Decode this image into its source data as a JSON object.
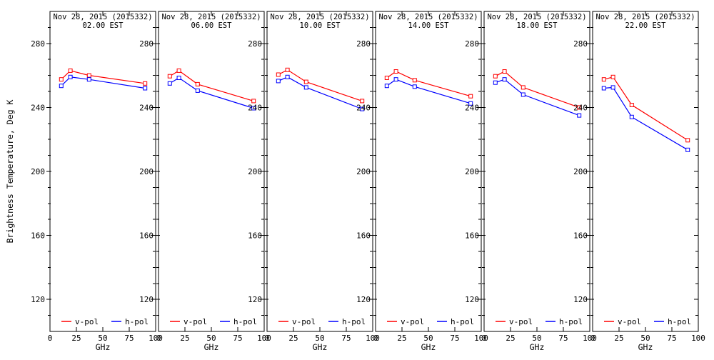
{
  "figure": {
    "background": "#ffffff",
    "frame_color": "#000000"
  },
  "chart_data": {
    "type": "line",
    "title_date": "Nov 28, 2015 (2015332)",
    "xlabel": "GHz",
    "ylabel": "Brightness Temperature, Deg K",
    "x": [
      10.7,
      19.3,
      37,
      90
    ],
    "xlim": [
      0,
      100
    ],
    "ylim": [
      100,
      300
    ],
    "xticks": [
      0,
      25,
      50,
      75,
      100
    ],
    "yticks": [
      120,
      160,
      200,
      240,
      280
    ],
    "y_minor_step": 10,
    "grid": false,
    "legend_position": "bottom-inside-each-panel",
    "legend": [
      {
        "key": "v_pol",
        "label": "v-pol",
        "color": "#ff0000"
      },
      {
        "key": "h_pol",
        "label": "h-pol",
        "color": "#0000ff"
      }
    ],
    "panels": [
      {
        "date": "Nov 28, 2015 (2015332)",
        "time": "02.00 EST",
        "v_pol": [
          257.5,
          263.0,
          260.0,
          255.0
        ],
        "h_pol": [
          253.5,
          259.0,
          257.5,
          252.0
        ]
      },
      {
        "date": "Nov 28, 2015 (2015332)",
        "time": "06.00 EST",
        "v_pol": [
          259.5,
          263.0,
          254.5,
          244.0
        ],
        "h_pol": [
          255.0,
          258.5,
          250.5,
          239.5
        ]
      },
      {
        "date": "Nov 28, 2015 (2015332)",
        "time": "10.00 EST",
        "v_pol": [
          260.5,
          263.5,
          256.0,
          244.0
        ],
        "h_pol": [
          256.5,
          259.0,
          252.5,
          239.0
        ]
      },
      {
        "date": "Nov 28, 2015 (2015332)",
        "time": "14.00 EST",
        "v_pol": [
          258.5,
          262.5,
          257.0,
          247.0
        ],
        "h_pol": [
          253.5,
          257.5,
          253.0,
          242.5
        ]
      },
      {
        "date": "Nov 28, 2015 (2015332)",
        "time": "18.00 EST",
        "v_pol": [
          259.5,
          262.5,
          252.5,
          240.0
        ],
        "h_pol": [
          255.5,
          257.5,
          248.0,
          235.0
        ]
      },
      {
        "date": "Nov 28, 2015 (2015332)",
        "time": "22.00 EST",
        "v_pol": [
          257.5,
          259.0,
          241.5,
          219.5
        ],
        "h_pol": [
          252.0,
          252.5,
          234.0,
          213.5
        ]
      }
    ]
  }
}
